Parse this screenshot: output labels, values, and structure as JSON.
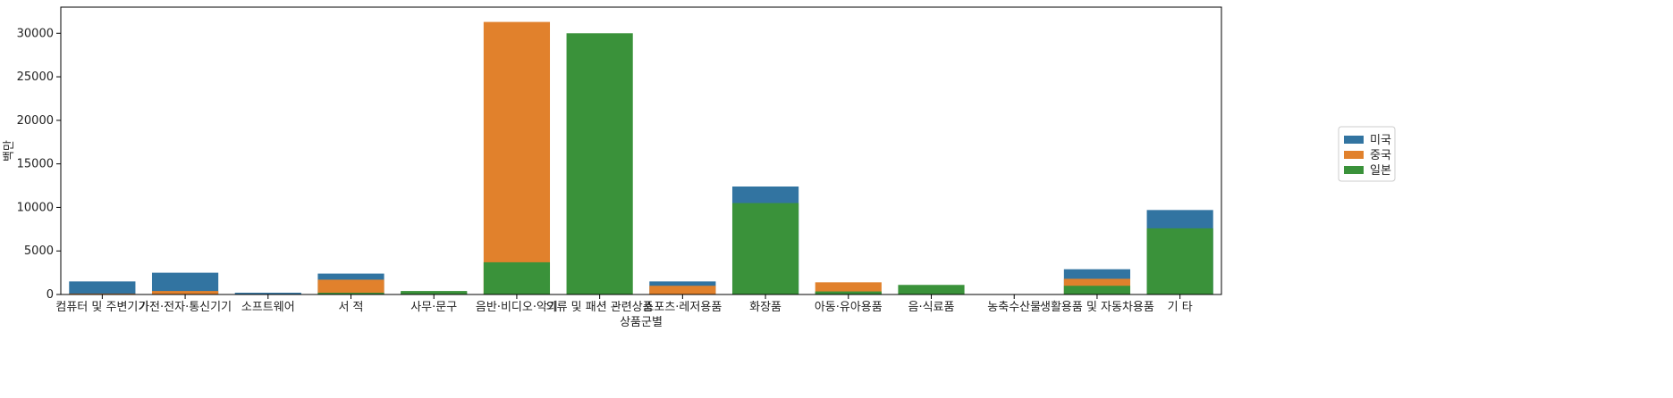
{
  "chart_data": {
    "type": "bar",
    "stacking": "overlaid",
    "xlabel": "상품군별",
    "ylabel": "백만",
    "ylim": [
      0,
      33000
    ],
    "yticks": [
      0,
      5000,
      10000,
      15000,
      20000,
      25000,
      30000
    ],
    "grid": false,
    "legend_position": "right",
    "categories": [
      "컴퓨터 및 주변기기",
      "가전·전자·통신기기",
      "소프트웨어",
      "서 적",
      "사무·문구",
      "음반·비디오·악기",
      "의류 및 패션 관련상품",
      "스포츠·레저용품",
      "화장품",
      "아동·유아용품",
      "음·식료품",
      "농축수산물",
      "생활용품 및 자동차용품",
      "기 타"
    ],
    "series": [
      {
        "name": "미국",
        "color": "#3274a1",
        "values": [
          1500,
          2500,
          200,
          2400,
          250,
          150,
          0,
          1500,
          12400,
          250,
          0,
          30,
          2900,
          9700
        ]
      },
      {
        "name": "중국",
        "color": "#e1812c",
        "values": [
          100,
          400,
          30,
          1700,
          50,
          31300,
          0,
          1000,
          0,
          1400,
          0,
          20,
          1800,
          0
        ]
      },
      {
        "name": "일본",
        "color": "#3a923a",
        "values": [
          0,
          0,
          0,
          200,
          400,
          3700,
          30000,
          0,
          10500,
          350,
          1100,
          0,
          1000,
          7600
        ]
      }
    ]
  }
}
